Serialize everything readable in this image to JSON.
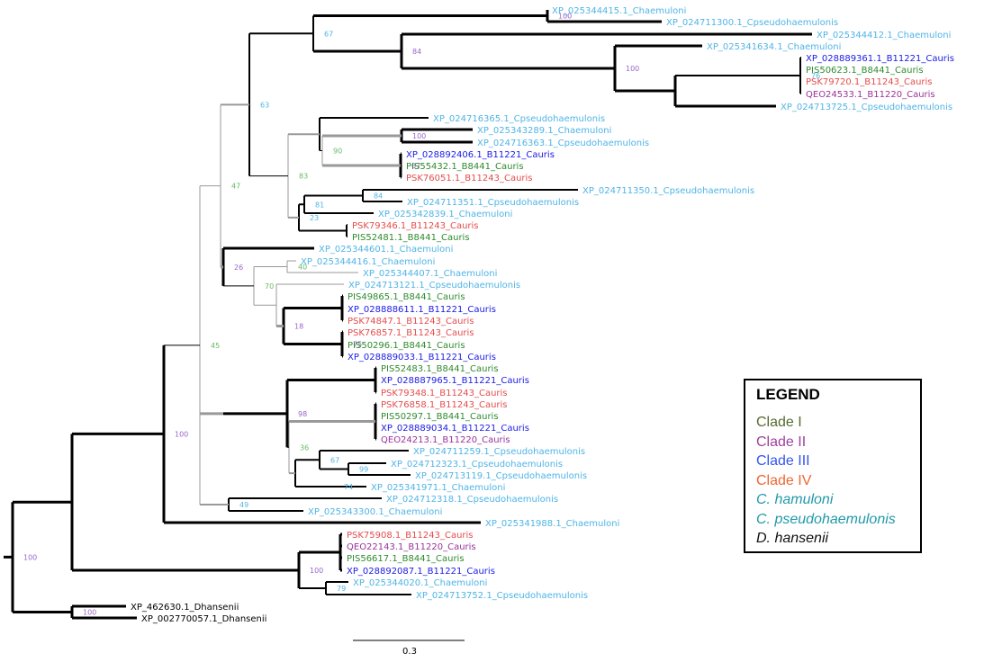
{
  "colors": {
    "cladeI": "#2e8b2e",
    "cladeII": "#993399",
    "cladeIII": "#1a1ae6",
    "cladeIV": "#e64c4c",
    "chamuloni": "#4fb4e6",
    "cpseudo": "#4fb4e6",
    "dhansenii": "#000000"
  },
  "legend": {
    "title": "LEGEND",
    "items": [
      {
        "label": "Clade I",
        "color": "#556b2f",
        "italic": false
      },
      {
        "label": "Clade II",
        "color": "#a040a0",
        "italic": false
      },
      {
        "label": "Clade III",
        "color": "#3355ee",
        "italic": false
      },
      {
        "label": "Clade IV",
        "color": "#ee6633",
        "italic": false
      },
      {
        "label": "C. hamuloni",
        "color": "#2299aa",
        "italic": true
      },
      {
        "label": "C. pseudohaemulonis",
        "color": "#2299aa",
        "italic": true
      },
      {
        "label": "D. hansenii",
        "color": "#111111",
        "italic": true
      }
    ]
  },
  "scale_bar": {
    "label": "0.3"
  },
  "leaves": [
    {
      "id": "a1",
      "label": "XP_025344415.1_Chaemuloni",
      "group": "chamuloni"
    },
    {
      "id": "a2",
      "label": "XP_024711300.1_Cpseudohaemulonis",
      "group": "cpseudo"
    },
    {
      "id": "a3",
      "label": "XP_025344412.1_Chaemuloni",
      "group": "chamuloni"
    },
    {
      "id": "a4",
      "label": "XP_025341634.1_Chaemuloni",
      "group": "chamuloni"
    },
    {
      "id": "a5",
      "label": "XP_028889361.1_B11221_Cauris",
      "group": "cladeIII"
    },
    {
      "id": "a6",
      "label": "PIS50623.1_B8441_Cauris",
      "group": "cladeI"
    },
    {
      "id": "a7",
      "label": "PSK79720.1_B11243_Cauris",
      "group": "cladeIV"
    },
    {
      "id": "a8",
      "label": "QEO24533.1_B11220_Cauris",
      "group": "cladeII"
    },
    {
      "id": "a9",
      "label": "XP_024713725.1_Cpseudohaemulonis",
      "group": "cpseudo"
    },
    {
      "id": "b1",
      "label": "XP_024716365.1_Cpseudohaemulonis",
      "group": "cpseudo"
    },
    {
      "id": "b2",
      "label": "XP_025343289.1_Chaemuloni",
      "group": "chamuloni"
    },
    {
      "id": "b3",
      "label": "XP_024716363.1_Cpseudohaemulonis",
      "group": "cpseudo"
    },
    {
      "id": "b4",
      "label": "XP_028892406.1_B11221_Cauris",
      "group": "cladeIII"
    },
    {
      "id": "b5",
      "label": "PIS55432.1_B8441_Cauris",
      "group": "cladeI"
    },
    {
      "id": "b6",
      "label": "PSK76051.1_B11243_Cauris",
      "group": "cladeIV"
    },
    {
      "id": "b7",
      "label": "XP_024711350.1_Cpseudohaemulonis",
      "group": "cpseudo"
    },
    {
      "id": "b8",
      "label": "XP_024711351.1_Cpseudohaemulonis",
      "group": "cpseudo"
    },
    {
      "id": "b9",
      "label": "XP_025342839.1_Chaemuloni",
      "group": "chamuloni"
    },
    {
      "id": "b10",
      "label": "PSK79346.1_B11243_Cauris",
      "group": "cladeIV"
    },
    {
      "id": "b11",
      "label": "PIS52481.1_B8441_Cauris",
      "group": "cladeI"
    },
    {
      "id": "c1",
      "label": "XP_025344601.1_Chaemuloni",
      "group": "chamuloni"
    },
    {
      "id": "c2",
      "label": "XP_025344416.1_Chaemuloni",
      "group": "chamuloni"
    },
    {
      "id": "c3",
      "label": "XP_025344407.1_Chaemuloni",
      "group": "chamuloni"
    },
    {
      "id": "c4",
      "label": "XP_024713121.1_Cpseudohaemulonis",
      "group": "cpseudo"
    },
    {
      "id": "c5",
      "label": "PIS49865.1_B8441_Cauris",
      "group": "cladeI"
    },
    {
      "id": "c6",
      "label": "XP_028888611.1_B11221_Cauris",
      "group": "cladeIII"
    },
    {
      "id": "c7",
      "label": "PSK74847.1_B11243_Cauris",
      "group": "cladeIV"
    },
    {
      "id": "c8",
      "label": "PSK76857.1_B11243_Cauris",
      "group": "cladeIV"
    },
    {
      "id": "c9",
      "label": "PIS50296.1_B8441_Cauris",
      "group": "cladeI"
    },
    {
      "id": "c10",
      "label": "XP_028889033.1_B11221_Cauris",
      "group": "cladeIII"
    },
    {
      "id": "d1",
      "label": "PIS52483.1_B8441_Cauris",
      "group": "cladeI"
    },
    {
      "id": "d2",
      "label": "XP_028887965.1_B11221_Cauris",
      "group": "cladeIII"
    },
    {
      "id": "d3",
      "label": "PSK79348.1_B11243_Cauris",
      "group": "cladeIV"
    },
    {
      "id": "d4",
      "label": "PSK76858.1_B11243_Cauris",
      "group": "cladeIV"
    },
    {
      "id": "d5",
      "label": "PIS50297.1_B8441_Cauris",
      "group": "cladeI"
    },
    {
      "id": "d6",
      "label": "XP_028889034.1_B11221_Cauris",
      "group": "cladeIII"
    },
    {
      "id": "d7",
      "label": "QEO24213.1_B11220_Cauris",
      "group": "cladeII"
    },
    {
      "id": "d8",
      "label": "XP_024711259.1_Cpseudohaemulonis",
      "group": "cpseudo"
    },
    {
      "id": "d9",
      "label": "XP_024712323.1_Cpseudohaemulonis",
      "group": "cpseudo"
    },
    {
      "id": "d10",
      "label": "XP_024713119.1_Cpseudohaemulonis",
      "group": "cpseudo"
    },
    {
      "id": "d11",
      "label": "XP_025341971.1_Chaemuloni",
      "group": "chamuloni"
    },
    {
      "id": "e1",
      "label": "XP_024712318.1_Cpseudohaemulonis",
      "group": "cpseudo"
    },
    {
      "id": "e2",
      "label": "XP_025343300.1_Chaemuloni",
      "group": "chamuloni"
    },
    {
      "id": "e3",
      "label": "XP_025341988.1_Chaemuloni",
      "group": "chamuloni"
    },
    {
      "id": "f1",
      "label": "PSK75908.1_B11243_Cauris",
      "group": "cladeIV"
    },
    {
      "id": "f2",
      "label": "QEO22143.1_B11220_Cauris",
      "group": "cladeII"
    },
    {
      "id": "f3",
      "label": "PIS56617.1_B8441_Cauris",
      "group": "cladeI"
    },
    {
      "id": "f4",
      "label": "XP_028892087.1_B11221_Cauris",
      "group": "cladeIII"
    },
    {
      "id": "f5",
      "label": "XP_025344020.1_Chaemuloni",
      "group": "chamuloni"
    },
    {
      "id": "f6",
      "label": "XP_024713752.1_Cpseudohaemulonis",
      "group": "cpseudo"
    },
    {
      "id": "g1",
      "label": "XP_462630.1_Dhansenii",
      "group": "dhansenii"
    },
    {
      "id": "g2",
      "label": "XP_002770057.1_Dhansenii",
      "group": "dhansenii"
    }
  ],
  "support_values": [
    {
      "id": "s_a12",
      "value": "100"
    },
    {
      "id": "s_a",
      "value": "67"
    },
    {
      "id": "s_a3b",
      "value": "84"
    },
    {
      "id": "s_a4b",
      "value": "100"
    },
    {
      "id": "s_a5b",
      "value": "76"
    },
    {
      "id": "s_ab",
      "value": "63"
    },
    {
      "id": "s_b23",
      "value": "100"
    },
    {
      "id": "s_b1b",
      "value": "90"
    },
    {
      "id": "s_b456",
      "value": "67"
    },
    {
      "id": "s_b78",
      "value": "84"
    },
    {
      "id": "s_b789",
      "value": "81"
    },
    {
      "id": "s_b10",
      "value": "23"
    },
    {
      "id": "s_b",
      "value": "83"
    },
    {
      "id": "s_abc",
      "value": "47"
    },
    {
      "id": "s_c23",
      "value": "40"
    },
    {
      "id": "s_c123",
      "value": "70"
    },
    {
      "id": "s_c5t",
      "value": "18"
    },
    {
      "id": "s_c5u",
      "value": "75"
    },
    {
      "id": "s_c",
      "value": "26"
    },
    {
      "id": "s_d4",
      "value": "98"
    },
    {
      "id": "s_d89",
      "value": "99"
    },
    {
      "id": "s_d1011",
      "value": "74"
    },
    {
      "id": "s_d8t",
      "value": "67"
    },
    {
      "id": "s_d8u",
      "value": "36"
    },
    {
      "id": "s_cd",
      "value": "45"
    },
    {
      "id": "s_e1",
      "value": "49"
    },
    {
      "id": "s_top",
      "value": "100"
    },
    {
      "id": "s_f",
      "value": "79"
    },
    {
      "id": "s_fu",
      "value": "100"
    },
    {
      "id": "s_root",
      "value": "100"
    },
    {
      "id": "s_g",
      "value": "100"
    }
  ]
}
